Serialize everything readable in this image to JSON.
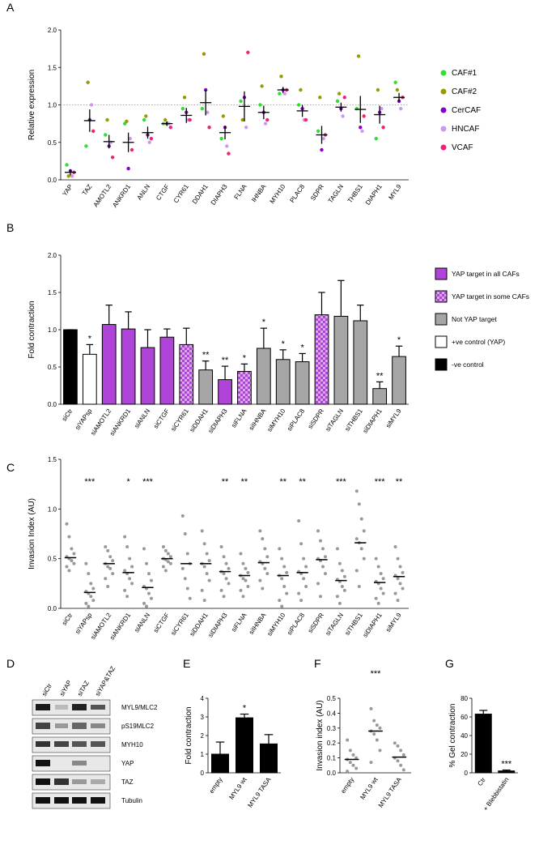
{
  "chart_data": [
    {
      "panel": "A",
      "type": "dotplot",
      "y_label": "Relative expression",
      "categories": [
        "YAP",
        "TAZ",
        "AMOTL2",
        "ANKRD1",
        "ANLN",
        "CTGF",
        "CYR61",
        "DDAH1",
        "DIAPH3",
        "FLNA",
        "IHNBA",
        "MYH10",
        "PLAC8",
        "SDPR",
        "TAGLN",
        "THBS1",
        "DIAPH1",
        "MYL9"
      ],
      "series": [
        {
          "name": "CAF#1",
          "color": "#33dd33",
          "values": [
            0.2,
            0.45,
            0.6,
            0.75,
            0.8,
            0.75,
            0.95,
            0.95,
            0.55,
            1.05,
            1.0,
            1.15,
            1.0,
            0.65,
            1.05,
            0.95,
            0.55,
            1.3
          ]
        },
        {
          "name": "CAF#2",
          "color": "#999900",
          "values": [
            0.05,
            1.3,
            0.8,
            0.78,
            0.85,
            0.8,
            1.1,
            1.68,
            0.85,
            0.8,
            1.25,
            1.38,
            1.2,
            1.1,
            1.15,
            1.65,
            1.2,
            1.2
          ]
        },
        {
          "name": "CerCAF",
          "color": "#8800cc",
          "values": [
            0.12,
            0.8,
            0.45,
            0.15,
            0.6,
            0.75,
            0.9,
            1.2,
            0.7,
            1.1,
            0.9,
            1.2,
            0.95,
            0.4,
            0.95,
            0.7,
            0.9,
            1.05
          ]
        },
        {
          "name": "HNCAF",
          "color": "#cc99ee",
          "values": [
            0.05,
            1.0,
            0.5,
            0.55,
            0.5,
            0.75,
            0.8,
            0.9,
            0.45,
            0.7,
            0.75,
            1.15,
            0.8,
            0.55,
            0.85,
            0.65,
            0.95,
            0.95
          ]
        },
        {
          "name": "VCAF",
          "color": "#ee2277",
          "values": [
            0.1,
            0.65,
            0.3,
            0.4,
            0.55,
            0.7,
            0.8,
            0.7,
            0.35,
            1.7,
            0.8,
            1.2,
            0.8,
            0.6,
            1.1,
            0.85,
            0.7,
            1.1
          ]
        }
      ],
      "means": [
        0.1,
        0.79,
        0.51,
        0.5,
        0.63,
        0.75,
        0.86,
        1.03,
        0.63,
        0.98,
        0.9,
        1.2,
        0.92,
        0.6,
        0.97,
        0.94,
        0.87,
        1.1
      ],
      "errors": [
        0.04,
        0.15,
        0.09,
        0.13,
        0.08,
        0.03,
        0.1,
        0.17,
        0.09,
        0.2,
        0.09,
        0.04,
        0.08,
        0.12,
        0.06,
        0.18,
        0.12,
        0.06
      ],
      "reference_line": 1,
      "ylim": [
        0,
        2
      ],
      "yticks": [
        {
          "value": 0,
          "label": "0.0"
        },
        0.5,
        {
          "value": 1,
          "label": "1.0"
        },
        1.5,
        {
          "value": 2,
          "label": "2.0"
        }
      ],
      "legend_position": "right"
    },
    {
      "panel": "B",
      "type": "bar",
      "y_label": "Fold contraction",
      "categories": [
        "siCtr",
        "siYAPsp",
        "siAMOTL2",
        "siANKRD1",
        "siANLN",
        "siCTGF",
        "siCYR61",
        "siDDAH1",
        "siDIAPH3",
        "siFLNA",
        "siIHNBA",
        "siMYH10",
        "siPLAC8",
        "siSDPR",
        "siTAGLN",
        "siTHBS1",
        "siDIAPH1",
        "siMYL9"
      ],
      "values": [
        1.0,
        0.67,
        1.07,
        1.01,
        0.76,
        0.9,
        0.8,
        0.46,
        0.33,
        0.44,
        0.75,
        0.6,
        0.57,
        1.2,
        1.18,
        1.12,
        0.21,
        0.64
      ],
      "errors": [
        0,
        0.13,
        0.26,
        0.23,
        0.24,
        0.11,
        0.22,
        0.12,
        0.18,
        0.1,
        0.27,
        0.13,
        0.11,
        0.3,
        0.48,
        0.21,
        0.09,
        0.14
      ],
      "significance": [
        null,
        "*",
        null,
        null,
        null,
        null,
        null,
        "**",
        "**",
        "*",
        "*",
        "*",
        "*",
        null,
        null,
        null,
        "**",
        "*"
      ],
      "groups": [
        4,
        3,
        0,
        0,
        0,
        0,
        1,
        2,
        0,
        1,
        2,
        2,
        2,
        1,
        2,
        2,
        2,
        2
      ],
      "legend": [
        {
          "name": "YAP target in all CAFs",
          "color": "#b044d8"
        },
        {
          "name": "YAP target in some CAFs",
          "color": "#b044d8",
          "pattern": "checker"
        },
        {
          "name": "Not YAP target",
          "color": "#a6a6a6"
        },
        {
          "name": "+ve control (YAP)",
          "color": "#ffffff"
        },
        {
          "name": "-ve control",
          "color": "#000000"
        }
      ],
      "legend_position": "right",
      "ylim": [
        0,
        2
      ],
      "yticks": [
        {
          "value": 0,
          "label": "0.0"
        },
        0.5,
        {
          "value": 1,
          "label": "1.0"
        },
        1.5,
        {
          "value": 2,
          "label": "2.0"
        }
      ]
    },
    {
      "panel": "C",
      "type": "dotplot",
      "y_label": "Invasion Index (AU)",
      "color": "#999999",
      "categories": [
        "siCtr",
        "siYAPsp",
        "siAMOTL2",
        "siANKRD1",
        "siANLN",
        "siCTGF",
        "siCYR61",
        "siDDAH1",
        "siDIAPH3",
        "siFLNA",
        "siIHNBA",
        "siMYH10",
        "siPLAC8",
        "siSDPR",
        "siTAGLN",
        "siTHBS1",
        "siDIAPH1",
        "siMYL9"
      ],
      "points": [
        [
          0.85,
          0.72,
          0.6,
          0.55,
          0.52,
          0.5,
          0.48,
          0.45,
          0.42,
          0.38
        ],
        [
          0.45,
          0.35,
          0.25,
          0.2,
          0.17,
          0.15,
          0.12,
          0.08,
          0.05,
          0.02
        ],
        [
          0.62,
          0.58,
          0.52,
          0.48,
          0.45,
          0.42,
          0.4,
          0.35,
          0.3,
          0.22
        ],
        [
          0.72,
          0.62,
          0.5,
          0.42,
          0.38,
          0.35,
          0.3,
          0.25,
          0.18,
          0.12
        ],
        [
          0.6,
          0.45,
          0.35,
          0.28,
          0.22,
          0.2,
          0.15,
          0.1,
          0.05,
          0.02
        ],
        [
          0.62,
          0.58,
          0.55,
          0.52,
          0.5,
          0.49,
          0.47,
          0.45,
          0.42,
          0.38
        ],
        [
          0.93,
          0.75,
          0.55,
          0.45,
          0.4,
          0.3,
          0.2,
          0.1
        ],
        [
          0.78,
          0.65,
          0.55,
          0.48,
          0.45,
          0.42,
          0.35,
          0.28,
          0.18,
          0.08
        ],
        [
          0.62,
          0.52,
          0.45,
          0.4,
          0.37,
          0.35,
          0.3,
          0.25,
          0.18,
          0.12
        ],
        [
          0.55,
          0.45,
          0.4,
          0.36,
          0.33,
          0.3,
          0.28,
          0.22,
          0.18,
          0.12
        ],
        [
          0.78,
          0.7,
          0.6,
          0.52,
          0.47,
          0.45,
          0.4,
          0.35,
          0.28,
          0.2
        ],
        [
          0.6,
          0.5,
          0.42,
          0.36,
          0.33,
          0.3,
          0.22,
          0.15,
          0.08,
          0.02
        ],
        [
          0.88,
          0.65,
          0.5,
          0.42,
          0.37,
          0.35,
          0.3,
          0.22,
          0.15,
          0.08
        ],
        [
          0.78,
          0.68,
          0.6,
          0.52,
          0.5,
          0.48,
          0.42,
          0.35,
          0.25,
          0.12
        ],
        [
          0.6,
          0.45,
          0.38,
          0.32,
          0.29,
          0.27,
          0.22,
          0.18,
          0.12,
          0.05
        ],
        [
          1.18,
          1.05,
          0.9,
          0.78,
          0.7,
          0.66,
          0.6,
          0.5,
          0.38,
          0.22
        ],
        [
          0.5,
          0.42,
          0.35,
          0.3,
          0.27,
          0.25,
          0.2,
          0.15,
          0.1,
          0.05
        ],
        [
          0.62,
          0.5,
          0.42,
          0.36,
          0.33,
          0.3,
          0.25,
          0.2,
          0.15,
          0.08
        ]
      ],
      "medians": [
        0.51,
        0.16,
        0.45,
        0.36,
        0.21,
        0.5,
        0.45,
        0.45,
        0.37,
        0.33,
        0.46,
        0.33,
        0.36,
        0.49,
        0.28,
        0.66,
        0.26,
        0.32
      ],
      "significance": [
        null,
        "***",
        null,
        "*",
        "***",
        null,
        null,
        null,
        "**",
        "**",
        null,
        "**",
        "**",
        null,
        "***",
        null,
        "***",
        "**"
      ],
      "ylim": [
        0,
        1.5
      ],
      "yticks": [
        {
          "value": 0,
          "label": "0.0"
        },
        0.5,
        {
          "value": 1,
          "label": "1.0"
        },
        1.5
      ]
    },
    {
      "panel": "E",
      "type": "bar",
      "y_label": "Fold contraction",
      "color": "#000000",
      "categories": [
        "empty",
        "MYL9 wt",
        "MYL9 TASA"
      ],
      "values": [
        1.0,
        2.95,
        1.55
      ],
      "errors": [
        0.65,
        0.2,
        0.5
      ],
      "significance": [
        null,
        "*",
        null
      ],
      "ylim": [
        0,
        4
      ],
      "yticks": [
        0,
        1,
        2,
        3,
        4
      ]
    },
    {
      "panel": "F",
      "type": "dotplot",
      "y_label": "Invasion index (AU)",
      "color": "#999999",
      "categories": [
        "empty",
        "MYL9 wt",
        "MYL9 TASA"
      ],
      "points": [
        [
          0.22,
          0.15,
          0.12,
          0.1,
          0.09,
          0.07,
          0.05,
          0.03,
          0.01
        ],
        [
          0.43,
          0.35,
          0.32,
          0.3,
          0.28,
          0.26,
          0.22,
          0.15,
          0.07
        ],
        [
          0.2,
          0.18,
          0.15,
          0.12,
          0.1,
          0.08,
          0.05,
          0.02
        ]
      ],
      "medians": [
        0.09,
        0.28,
        0.105
      ],
      "significance": [
        null,
        "***",
        null
      ],
      "ylim": [
        0,
        0.5
      ],
      "yticks": [
        {
          "value": 0,
          "label": "0.0"
        },
        0.1,
        0.2,
        0.3,
        0.4,
        0.5
      ]
    },
    {
      "panel": "G",
      "type": "bar",
      "y_label": "% Gel contraction",
      "color": "#000000",
      "categories": [
        "Ctr",
        "+ Blebbistatin"
      ],
      "values": [
        63,
        2
      ],
      "errors": [
        4,
        1
      ],
      "significance": [
        null,
        "***"
      ],
      "ylim": [
        0,
        80
      ],
      "yticks": [
        0,
        20,
        40,
        60,
        80
      ]
    }
  ],
  "blot": {
    "panel": "D",
    "lanes": [
      "siCtr",
      "siYAP",
      "siTAZ",
      "siYAP&TAZ"
    ],
    "rows": [
      "MYL9/MLC2",
      "pS19MLC2",
      "MYH10",
      "YAP",
      "TAZ",
      "Tubulin"
    ]
  }
}
